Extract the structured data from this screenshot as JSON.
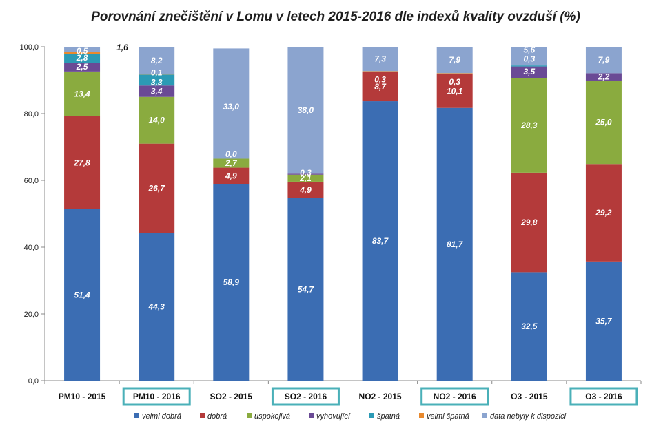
{
  "chart_data": {
    "type": "bar",
    "stacked": true,
    "title": "Porovnání znečištění v Lomu v letech 2015-2016 dle indexů kvality ovzduší (%)",
    "categories": [
      "PM10 - 2015",
      "PM10 - 2016",
      "SO2 - 2015",
      "SO2 - 2016",
      "NO2 - 2015",
      "NO2 - 2016",
      "O3 - 2015",
      "O3 - 2016"
    ],
    "highlighted_categories": [
      "PM10 - 2016",
      "SO2 - 2016",
      "NO2 - 2016",
      "O3 - 2016"
    ],
    "ylim": [
      0,
      100
    ],
    "yticks": [
      "0,0",
      "20,0",
      "40,0",
      "60,0",
      "80,0",
      "100,0"
    ],
    "grid": false,
    "legend_position": "bottom",
    "series": [
      {
        "name": "velmi dobrá",
        "color": "#3b6db3",
        "values": [
          51.4,
          44.3,
          58.9,
          54.7,
          83.7,
          81.7,
          32.5,
          35.7
        ],
        "labels": [
          "51,4",
          "44,3",
          "58,9",
          "54,7",
          "83,7",
          "81,7",
          "32,5",
          "35,7"
        ]
      },
      {
        "name": "dobrá",
        "color": "#b43a3a",
        "values": [
          27.8,
          26.7,
          4.9,
          4.9,
          8.7,
          10.1,
          29.8,
          29.2
        ],
        "labels": [
          "27,8",
          "26,7",
          "4,9",
          "4,9",
          "8,7",
          "10,1",
          "29,8",
          "29,2"
        ]
      },
      {
        "name": "uspokojivá",
        "color": "#8aab3f",
        "values": [
          13.4,
          14.0,
          2.7,
          2.1,
          0,
          0,
          28.3,
          25.0
        ],
        "labels": [
          "13,4",
          "14,0",
          "2,7",
          "2,1",
          "",
          "",
          "28,3",
          "25,0"
        ]
      },
      {
        "name": "vyhovující",
        "color": "#6a4a95",
        "values": [
          2.5,
          3.4,
          0.0,
          0.3,
          0,
          0,
          3.5,
          2.2
        ],
        "labels": [
          "2,5",
          "3,4",
          "0,0",
          "0,3",
          "",
          "",
          "3,5",
          "2,2"
        ]
      },
      {
        "name": "špatná",
        "color": "#2b9ab5",
        "values": [
          2.8,
          3.3,
          0,
          0,
          0,
          0,
          0.3,
          0
        ],
        "labels": [
          "2,8",
          "3,3",
          "",
          "",
          "",
          "",
          "0,3",
          ""
        ]
      },
      {
        "name": "velmi špatná",
        "color": "#e8892e",
        "values": [
          0.5,
          0.1,
          0,
          0,
          0.3,
          0.3,
          0,
          0
        ],
        "labels": [
          "0,5",
          "0,1",
          "",
          "",
          "0,3",
          "0,3",
          "",
          ""
        ]
      },
      {
        "name": "data nebyly k dispozici",
        "color": "#8ba4cf",
        "values": [
          1.6,
          8.2,
          33.0,
          38.0,
          7.3,
          7.9,
          5.6,
          7.9
        ],
        "labels": [
          "1,6",
          "8,2",
          "33,0",
          "38,0",
          "7,3",
          "7,9",
          "5,6",
          "7,9"
        ]
      }
    ]
  }
}
